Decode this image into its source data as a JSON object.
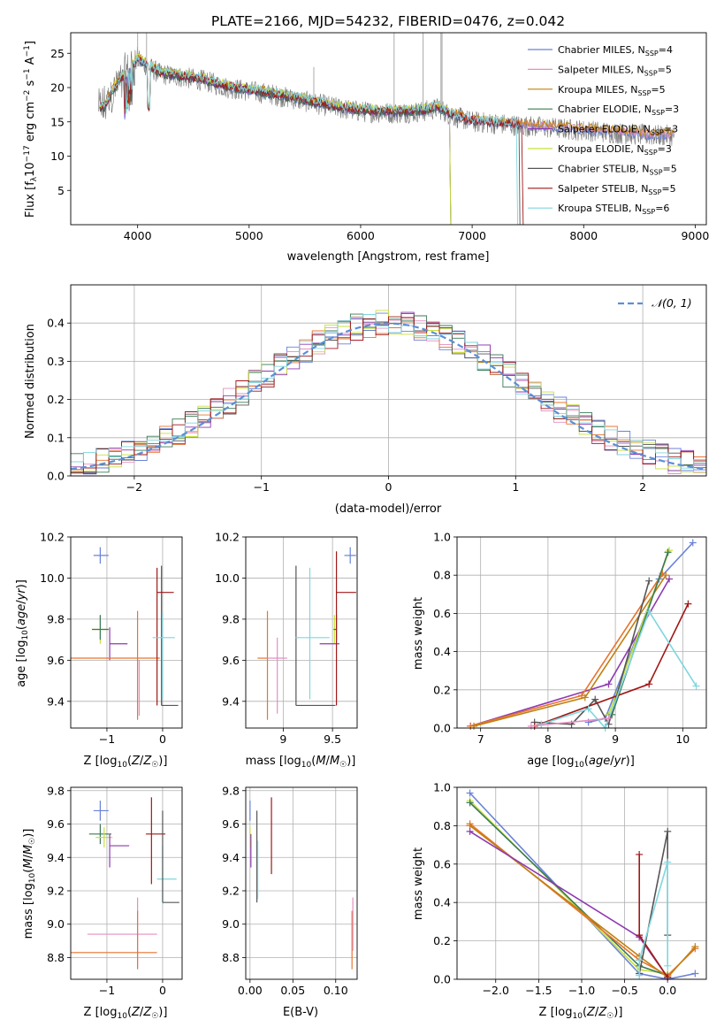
{
  "figure_title": "PLATE=2166, MJD=54232, FIBERID=0476, z=0.042",
  "colors": {
    "Chabrier MILES": "#6a82d8",
    "Salpeter MILES": "#e58fc0",
    "Kroupa MILES": "#c08010",
    "Chabrier ELODIE": "#3a7a55",
    "Salpeter ELODIE": "#8e3ab0",
    "Kroupa ELODIE": "#c8e03a",
    "Chabrier STELIB": "#555555",
    "Salpeter STELIB": "#a01818",
    "Kroupa STELIB": "#7fd6dd",
    "orange": "#e8742e",
    "gaussian": "#5b8fd6",
    "grid": "#b0b0b0"
  },
  "chart_data": [
    {
      "id": "spectrum",
      "type": "line",
      "xlabel": "wavelength [Angstrom, rest frame]",
      "ylabel": "Flux [f_λ 10^-17 erg cm^-2 s^-1 A^-1]",
      "xlim": [
        3400,
        9100
      ],
      "ylim": [
        0,
        28
      ],
      "xticks": [
        4000,
        5000,
        6000,
        7000,
        8000,
        9000
      ],
      "yticks": [
        5,
        10,
        15,
        20,
        25
      ],
      "grid": false,
      "legend_position": "top-right",
      "legend": [
        {
          "text": "Chabrier MILES, N",
          "sub": "SSP",
          "eq": "=4",
          "series": "Chabrier MILES"
        },
        {
          "text": "Salpeter MILES, N",
          "sub": "SSP",
          "eq": "=5",
          "series": "Salpeter MILES"
        },
        {
          "text": "Kroupa MILES, N",
          "sub": "SSP",
          "eq": "=5",
          "series": "Kroupa MILES"
        },
        {
          "text": "Chabrier ELODIE, N",
          "sub": "SSP",
          "eq": "=3",
          "series": "Chabrier ELODIE"
        },
        {
          "text": "Salpeter ELODIE, N",
          "sub": "SSP",
          "eq": "=3",
          "series": "Salpeter ELODIE"
        },
        {
          "text": "Kroupa ELODIE, N",
          "sub": "SSP",
          "eq": "=3",
          "series": "Kroupa ELODIE"
        },
        {
          "text": "Chabrier STELIB, N",
          "sub": "SSP",
          "eq": "=5",
          "series": "Chabrier STELIB"
        },
        {
          "text": "Salpeter STELIB, N",
          "sub": "SSP",
          "eq": "=5",
          "series": "Salpeter STELIB"
        },
        {
          "text": "Kroupa STELIB, N",
          "sub": "SSP",
          "eq": "=6",
          "series": "Kroupa STELIB"
        }
      ],
      "continuum": [
        [
          3700,
          17
        ],
        [
          3800,
          20
        ],
        [
          3900,
          22
        ],
        [
          4000,
          24
        ],
        [
          4100,
          23
        ],
        [
          4200,
          22
        ],
        [
          4400,
          21.5
        ],
        [
          4600,
          21
        ],
        [
          4800,
          20
        ],
        [
          5000,
          19.5
        ],
        [
          5200,
          19
        ],
        [
          5500,
          18
        ],
        [
          5800,
          17
        ],
        [
          6000,
          16.5
        ],
        [
          6300,
          16.3
        ],
        [
          6560,
          16.5
        ],
        [
          6700,
          17
        ],
        [
          6800,
          16
        ],
        [
          7000,
          15
        ],
        [
          7400,
          14.5
        ],
        [
          7800,
          14
        ],
        [
          8200,
          13.5
        ],
        [
          8600,
          13
        ],
        [
          8800,
          13
        ]
      ],
      "data_range": [
        3650,
        8820
      ],
      "model_cutoffs": {
        "Kroupa ELODIE": 6800,
        "Salpeter ELODIE": 6800,
        "Chabrier ELODIE": 6800,
        "Salpeter STELIB": 7450,
        "Kroupa STELIB": 7400,
        "Chabrier STELIB": 7420
      }
    },
    {
      "id": "residual-hist",
      "type": "histogram",
      "xlabel": "(data-model)/error",
      "ylabel": "Normed distribution",
      "xlim": [
        -2.5,
        2.5
      ],
      "ylim": [
        0,
        0.5
      ],
      "xticks": [
        -2,
        -1,
        0,
        1,
        2
      ],
      "yticks": [
        0.0,
        0.1,
        0.2,
        0.3,
        0.4
      ],
      "grid": true,
      "legend_position": "top-right",
      "legend": [
        {
          "text": "𝒩(0, 1)",
          "style": "dashed"
        }
      ],
      "gaussian": {
        "mean": 0,
        "sigma": 1
      },
      "bin_width": 0.1,
      "bin_start": -2.5
    },
    {
      "id": "age-vs-Z",
      "type": "errorbar",
      "xlabel": "Z [log10(Z/Z☉)]",
      "ylabel": "age [log10(age/yr)]",
      "xlim": [
        -1.65,
        0.35
      ],
      "ylim": [
        9.27,
        10.2
      ],
      "xticks": [
        -1,
        0
      ],
      "yticks": [
        9.4,
        9.6,
        9.8,
        10.0,
        10.2
      ],
      "grid": true,
      "points": [
        {
          "series": "Chabrier MILES",
          "x": -1.12,
          "xerr": [
            0.12,
            0.15
          ],
          "y": 10.11,
          "yerr": [
            0.04,
            0.04
          ]
        },
        {
          "series": "Kroupa ELODIE",
          "x": -1.12,
          "xerr": [
            0.15,
            0.15
          ],
          "y": 9.75,
          "yerr": [
            0.07,
            0.07
          ]
        },
        {
          "series": "Chabrier ELODIE",
          "x": -1.12,
          "xerr": [
            0.15,
            0.15
          ],
          "y": 9.75,
          "yerr": [
            0.05,
            0.07
          ]
        },
        {
          "series": "Salpeter ELODIE",
          "x": -0.95,
          "xerr": [
            0.0,
            0.32
          ],
          "y": 9.68,
          "yerr": [
            0.08,
            0.08
          ]
        },
        {
          "series": "orange",
          "x": -0.45,
          "xerr": [
            1.2,
            0.4
          ],
          "y": 9.61,
          "yerr": [
            0.3,
            0.23
          ]
        },
        {
          "series": "Salpeter MILES",
          "x": -0.42,
          "xerr": [
            0.0,
            0.0
          ],
          "y": 9.6,
          "yerr": [
            0.27,
            0.0
          ]
        },
        {
          "series": "Chabrier STELIB",
          "x": -0.02,
          "xerr": [
            0.0,
            0.3
          ],
          "y": 9.38,
          "yerr": [
            0.0,
            0.68
          ]
        },
        {
          "series": "Salpeter STELIB",
          "x": -0.1,
          "xerr": [
            0.0,
            0.3
          ],
          "y": 9.93,
          "yerr": [
            0.55,
            0.12
          ]
        },
        {
          "series": "Kroupa STELIB",
          "x": 0.0,
          "xerr": [
            0.18,
            0.22
          ],
          "y": 9.71,
          "yerr": [
            0.3,
            0.12
          ]
        }
      ]
    },
    {
      "id": "age-vs-mass",
      "type": "errorbar",
      "xlabel": "mass [log10(M/M☉)]",
      "ylabel": "",
      "xlim": [
        8.62,
        9.75
      ],
      "ylim": [
        9.27,
        10.2
      ],
      "xticks": [
        9.0,
        9.5
      ],
      "yticks": [
        9.4,
        9.6,
        9.8,
        10.0,
        10.2
      ],
      "grid": true,
      "points": [
        {
          "series": "Chabrier MILES",
          "x": 9.68,
          "xerr": [
            0.06,
            0.06
          ],
          "y": 10.11,
          "yerr": [
            0.04,
            0.04
          ]
        },
        {
          "series": "orange",
          "x": 8.84,
          "xerr": [
            0.1,
            0.0
          ],
          "y": 9.61,
          "yerr": [
            0.3,
            0.23
          ]
        },
        {
          "series": "Salpeter MILES",
          "x": 8.94,
          "xerr": [
            0.1,
            0.1
          ],
          "y": 9.61,
          "yerr": [
            0.27,
            0.1
          ]
        },
        {
          "series": "Chabrier STELIB",
          "x": 9.13,
          "xerr": [
            0.0,
            0.4
          ],
          "y": 9.38,
          "yerr": [
            0.0,
            0.68
          ]
        },
        {
          "series": "Kroupa STELIB",
          "x": 9.27,
          "xerr": [
            0.15,
            0.2
          ],
          "y": 9.71,
          "yerr": [
            0.3,
            0.34
          ]
        },
        {
          "series": "Kroupa ELODIE",
          "x": 9.52,
          "xerr": [
            0.0,
            0.02
          ],
          "y": 9.75,
          "yerr": [
            0.07,
            0.07
          ]
        },
        {
          "series": "Chabrier ELODIE",
          "x": 9.54,
          "xerr": [
            0.03,
            0.0
          ],
          "y": 9.75,
          "yerr": [
            0.05,
            0.07
          ]
        },
        {
          "series": "Salpeter ELODIE",
          "x": 9.47,
          "xerr": [
            0.1,
            0.1
          ],
          "y": 9.68,
          "yerr": [
            0.0,
            0.0
          ]
        },
        {
          "series": "Salpeter STELIB",
          "x": 9.54,
          "xerr": [
            0.0,
            0.2
          ],
          "y": 9.93,
          "yerr": [
            0.55,
            0.2
          ]
        }
      ]
    },
    {
      "id": "weight-vs-age",
      "type": "line",
      "xlabel": "age [log10(age/yr)]",
      "ylabel": "mass weight",
      "xlim": [
        6.65,
        10.35
      ],
      "ylim": [
        0,
        1.0
      ],
      "xticks": [
        7,
        8,
        9,
        10
      ],
      "yticks": [
        0.0,
        0.2,
        0.4,
        0.6,
        0.8,
        1.0
      ],
      "grid": true,
      "series": [
        {
          "series": "Chabrier MILES",
          "x": [
            8.6,
            8.85,
            9.65,
            10.15
          ],
          "y": [
            0.03,
            0.05,
            0.78,
            0.97
          ]
        },
        {
          "series": "Salpeter ELODIE",
          "x": [
            6.85,
            8.9,
            9.8
          ],
          "y": [
            0.01,
            0.23,
            0.78
          ]
        },
        {
          "series": "orange",
          "x": [
            6.85,
            8.5,
            9.7
          ],
          "y": [
            0.01,
            0.17,
            0.81
          ]
        },
        {
          "series": "Kroupa MILES",
          "x": [
            6.9,
            8.55,
            9.75
          ],
          "y": [
            0.01,
            0.16,
            0.8
          ]
        },
        {
          "series": "Kroupa ELODIE",
          "x": [
            8.9,
            9.8
          ],
          "y": [
            0.07,
            0.93
          ]
        },
        {
          "series": "Chabrier ELODIE",
          "x": [
            8.95,
            9.78
          ],
          "y": [
            0.07,
            0.92
          ]
        },
        {
          "series": "Chabrier STELIB",
          "x": [
            7.8,
            8.35,
            8.7,
            8.9,
            9.5
          ],
          "y": [
            0.03,
            0.02,
            0.15,
            0.02,
            0.77
          ]
        },
        {
          "series": "Salpeter STELIB",
          "x": [
            7.8,
            9.5,
            10.08
          ],
          "y": [
            0.01,
            0.23,
            0.65
          ]
        },
        {
          "series": "Kroupa STELIB",
          "x": [
            7.9,
            8.6,
            8.85,
            9.5,
            10.2
          ],
          "y": [
            0.02,
            0.1,
            0.0,
            0.61,
            0.22
          ]
        },
        {
          "series": "Salpeter MILES",
          "x": [
            7.75,
            8.9
          ],
          "y": [
            0.01,
            0.05
          ]
        }
      ]
    },
    {
      "id": "mass-vs-Z",
      "type": "errorbar",
      "xlabel": "Z [log10(Z/Z☉)]",
      "ylabel": "mass [log10(M/M☉)]",
      "xlim": [
        -1.65,
        0.35
      ],
      "ylim": [
        8.67,
        9.82
      ],
      "xticks": [
        -1,
        0
      ],
      "yticks": [
        8.8,
        9.0,
        9.2,
        9.4,
        9.6,
        9.8
      ],
      "grid": true,
      "points": [
        {
          "series": "Chabrier MILES",
          "x": -1.12,
          "xerr": [
            0.12,
            0.15
          ],
          "y": 9.68,
          "yerr": [
            0.06,
            0.06
          ]
        },
        {
          "series": "Chabrier ELODIE",
          "x": -1.12,
          "xerr": [
            0.2,
            0.2
          ],
          "y": 9.54,
          "yerr": [
            0.06,
            0.06
          ]
        },
        {
          "series": "Kroupa ELODIE",
          "x": -1.05,
          "xerr": [
            0.15,
            0.15
          ],
          "y": 9.52,
          "yerr": [
            0.06,
            0.06
          ]
        },
        {
          "series": "Salpeter ELODIE",
          "x": -0.95,
          "xerr": [
            0.0,
            0.35
          ],
          "y": 9.47,
          "yerr": [
            0.13,
            0.07
          ]
        },
        {
          "series": "Salpeter MILES",
          "x": -0.45,
          "xerr": [
            0.9,
            0.35
          ],
          "y": 8.94,
          "yerr": [
            0.2,
            0.22
          ]
        },
        {
          "series": "orange",
          "x": -0.45,
          "xerr": [
            1.2,
            0.35
          ],
          "y": 8.83,
          "yerr": [
            0.1,
            0.25
          ]
        },
        {
          "series": "Salpeter STELIB",
          "x": -0.2,
          "xerr": [
            0.1,
            0.25
          ],
          "y": 9.54,
          "yerr": [
            0.3,
            0.22
          ]
        },
        {
          "series": "Kroupa STELIB",
          "x": 0.0,
          "xerr": [
            0.1,
            0.25
          ],
          "y": 9.27,
          "yerr": [
            0.15,
            0.2
          ]
        },
        {
          "series": "Chabrier STELIB",
          "x": 0.0,
          "xerr": [
            0.0,
            0.3
          ],
          "y": 9.13,
          "yerr": [
            0.0,
            0.55
          ]
        }
      ]
    },
    {
      "id": "mass-vs-EBV",
      "type": "errorbar",
      "xlabel": "E(B-V)",
      "ylabel": "",
      "xlim": [
        -0.005,
        0.125
      ],
      "ylim": [
        8.67,
        9.82
      ],
      "xticks": [
        0.0,
        0.05,
        0.1
      ],
      "xticklabels": [
        "0.00",
        "0.05",
        "0.10"
      ],
      "yticks": [
        8.8,
        9.0,
        9.2,
        9.4,
        9.6,
        9.8
      ],
      "grid": true,
      "points": [
        {
          "series": "Chabrier MILES",
          "x": 0.0,
          "xerr": [
            0,
            0
          ],
          "y": 9.68,
          "yerr": [
            0.06,
            0.06
          ]
        },
        {
          "series": "Kroupa ELODIE",
          "x": 0.0,
          "xerr": [
            0,
            0
          ],
          "y": 9.52,
          "yerr": [
            0.06,
            0.06
          ]
        },
        {
          "series": "Salpeter ELODIE",
          "x": 0.001,
          "xerr": [
            0,
            0
          ],
          "y": 9.47,
          "yerr": [
            0.13,
            0.07
          ]
        },
        {
          "series": "Chabrier STELIB",
          "x": 0.008,
          "xerr": [
            0,
            0
          ],
          "y": 9.4,
          "yerr": [
            0.27,
            0.28
          ]
        },
        {
          "series": "Kroupa STELIB",
          "x": 0.009,
          "xerr": [
            0,
            0
          ],
          "y": 9.3,
          "yerr": [
            0.15,
            0.2
          ]
        },
        {
          "series": "Salpeter STELIB",
          "x": 0.025,
          "xerr": [
            0,
            0
          ],
          "y": 9.54,
          "yerr": [
            0.24,
            0.22
          ]
        },
        {
          "series": "orange",
          "x": 0.119,
          "xerr": [
            0,
            0
          ],
          "y": 8.83,
          "yerr": [
            0.1,
            0.25
          ]
        },
        {
          "series": "Salpeter MILES",
          "x": 0.12,
          "xerr": [
            0,
            0
          ],
          "y": 8.94,
          "yerr": [
            0.1,
            0.22
          ]
        }
      ]
    },
    {
      "id": "weight-vs-Z",
      "type": "line",
      "xlabel": "Z [log10(Z/Z☉)]",
      "ylabel": "mass weight",
      "xlim": [
        -2.45,
        0.45
      ],
      "ylim": [
        0,
        1.0
      ],
      "xticks": [
        -2.0,
        -1.5,
        -1.0,
        -0.5,
        0.0
      ],
      "xticklabels": [
        "−2.0",
        "−1.5",
        "−1.0",
        "−0.5",
        "0.0"
      ],
      "yticks": [
        0.0,
        0.2,
        0.4,
        0.6,
        0.8,
        1.0
      ],
      "grid": true,
      "series": [
        {
          "series": "Chabrier MILES",
          "x": [
            -2.3,
            -0.33,
            0.0,
            0.32
          ],
          "y": [
            0.97,
            0.03,
            0.0,
            0.03
          ]
        },
        {
          "series": "Kroupa ELODIE",
          "x": [
            -2.3,
            -0.33,
            0.0
          ],
          "y": [
            0.93,
            0.05,
            0.03
          ]
        },
        {
          "series": "Chabrier ELODIE",
          "x": [
            -2.3,
            -0.33,
            0.0
          ],
          "y": [
            0.92,
            0.07,
            0.02
          ]
        },
        {
          "series": "orange",
          "x": [
            -2.3,
            -0.33,
            0.0,
            0.32
          ],
          "y": [
            0.81,
            0.1,
            0.02,
            0.16
          ]
        },
        {
          "series": "Kroupa MILES",
          "x": [
            -2.3,
            -0.33,
            0.0,
            0.32
          ],
          "y": [
            0.8,
            0.12,
            0.01,
            0.17
          ]
        },
        {
          "series": "Salpeter ELODIE",
          "x": [
            -2.3,
            -0.33,
            0.0
          ],
          "y": [
            0.77,
            0.22,
            0.01
          ]
        },
        {
          "series": "Chabrier STELIB",
          "x": [
            -0.33,
            0.0,
            0.0
          ],
          "y": [
            0.03,
            0.77,
            0.23
          ]
        },
        {
          "series": "Salpeter STELIB",
          "x": [
            -0.33,
            -0.33,
            0.0
          ],
          "y": [
            0.65,
            0.23,
            0.01
          ]
        },
        {
          "series": "Kroupa STELIB",
          "x": [
            -0.33,
            -0.33,
            0.0,
            0.0
          ],
          "y": [
            0.02,
            0.1,
            0.61,
            0.07
          ]
        }
      ]
    }
  ]
}
